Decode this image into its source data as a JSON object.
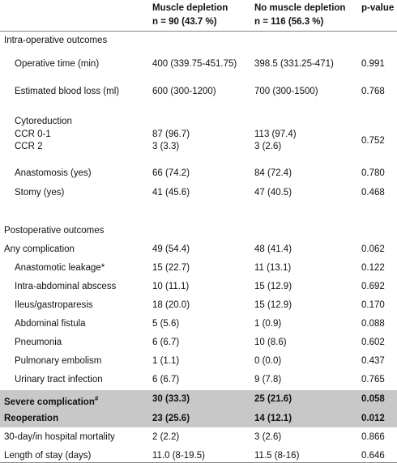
{
  "table": {
    "header": {
      "columns": [
        "Muscle depletion",
        "No muscle depletion",
        "p-value"
      ],
      "groups": [
        "n = 90 (43.7 %)",
        "n = 116 (56.3 %)"
      ]
    },
    "sections": [
      {
        "title": "Intra-operative outcomes",
        "rows": [
          {
            "label": "Operative time (min)",
            "cells": [
              "400 (339.75-451.75)",
              "398.5 (331.25-471)",
              "0.991"
            ]
          },
          {
            "label": "Estimated blood loss (ml)",
            "cells": [
              "600 (300-1200)",
              "700 (300-1500)",
              "0.768"
            ]
          },
          {
            "label": "Cytoreduction",
            "sub": [
              {
                "label": "CCR 0-1",
                "cells": [
                  "87 (96.7)",
                  "113 (97.4)"
                ]
              },
              {
                "label": "CCR 2",
                "cells": [
                  "3 (3.3)",
                  "3 (2.6)"
                ]
              }
            ],
            "p": "0.752"
          },
          {
            "label": "Anastomosis (yes)",
            "cells": [
              "66 (74.2)",
              "84 (72.4)",
              "0.780"
            ]
          },
          {
            "label": "Stomy (yes)",
            "cells": [
              "41 (45.6)",
              "47 (40.5)",
              "0.468"
            ]
          }
        ]
      },
      {
        "title": "Postoperative outcomes",
        "rows": [
          {
            "label": "Any complication",
            "cells": [
              "49 (54.4)",
              "48 (41.4)",
              "0.062"
            ]
          },
          {
            "label": "Anastomotic leakage*",
            "cells": [
              "15 (22.7)",
              "11 (13.1)",
              "0.122"
            ]
          },
          {
            "label": "Intra-abdominal abscess",
            "cells": [
              "10 (11.1)",
              "15 (12.9)",
              "0.692"
            ]
          },
          {
            "label": "Ileus/gastroparesis",
            "cells": [
              "18 (20.0)",
              "15 (12.9)",
              "0.170"
            ]
          },
          {
            "label": "Abdominal fistula",
            "cells": [
              "5 (5.6)",
              "1 (0.9)",
              "0.088"
            ]
          },
          {
            "label": "Pneumonia",
            "cells": [
              "6 (6.7)",
              "10 (8.6)",
              "0.602"
            ]
          },
          {
            "label": "Pulmonary embolism",
            "cells": [
              "1 (1.1)",
              "0 (0.0)",
              "0.437"
            ]
          },
          {
            "label": "Urinary tract infection",
            "cells": [
              "6 (6.7)",
              "9 (7.8)",
              "0.765"
            ]
          },
          {
            "label": "Severe complication",
            "note": "#",
            "cells": [
              "30 (33.3)",
              "25 (21.6)",
              "0.058"
            ]
          },
          {
            "label": "Reoperation",
            "cells": [
              "23 (25.6)",
              "14 (12.1)",
              "0.012"
            ]
          },
          {
            "label": "30-day/in hospital mortality",
            "cells": [
              "2 (2.2)",
              "3 (2.6)",
              "0.866"
            ]
          },
          {
            "label": "Length of stay (days)",
            "cells": [
              "11.0 (8-19.5)",
              "11.5 (8-16)",
              "0.646"
            ]
          }
        ]
      }
    ]
  }
}
